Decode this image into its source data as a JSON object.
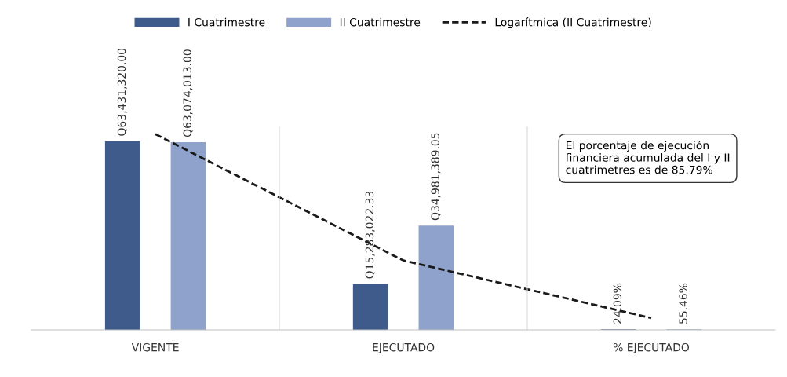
{
  "chart_data": {
    "type": "bar",
    "categories": [
      "VIGENTE",
      "EJECUTADO",
      "% EJECUTADO"
    ],
    "series": [
      {
        "name": "I Cuatrimestre",
        "color": "#3e5b8c",
        "values": [
          63431320.0,
          15283022.33,
          24.09
        ],
        "value_labels": [
          "Q63,431,320.00",
          "Q15,283,022.33",
          "24.09%"
        ]
      },
      {
        "name": "II Cuatrimestre",
        "color": "#8ea2cb",
        "values": [
          63074013.0,
          34981389.05,
          55.46
        ],
        "value_labels": [
          "Q63,074,013.00",
          "Q34,981,389.05",
          "55.46%"
        ]
      },
      {
        "name": "Logarítmica (II Cuatrimestre)",
        "type": "line",
        "color": "#1a1a1a",
        "line_style": "dashed",
        "values": [
          66000000,
          23400000,
          4000000
        ]
      }
    ],
    "annotations": [
      "El porcentaje de ejecución\nfinanciera acumulada del I y II\ncuatrimetres es de 85.79%"
    ],
    "legend": "top",
    "grid": false
  }
}
